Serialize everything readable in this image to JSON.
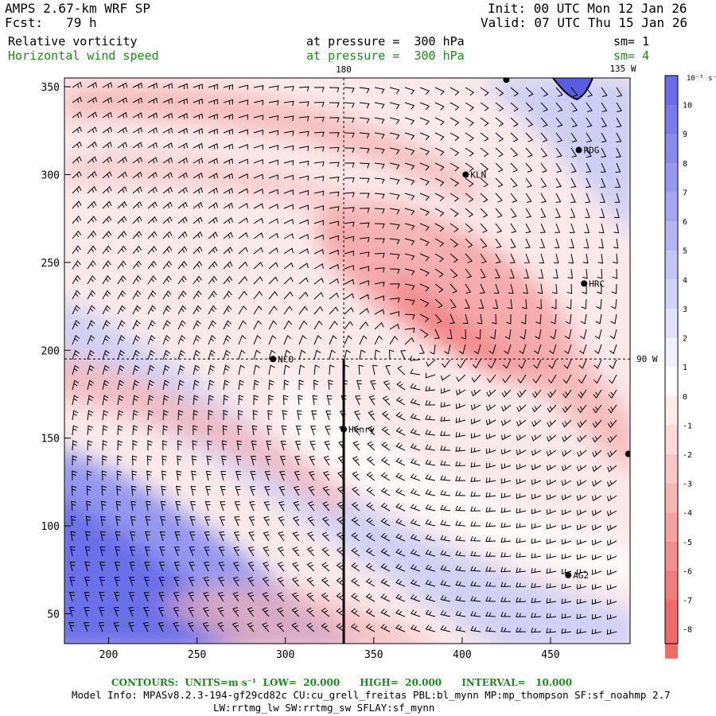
{
  "header": {
    "model": "AMPS 2.67-km WRF SP",
    "forecast": "Fcst:   79 h",
    "init": "Init: 00 UTC Mon 12 Jan 26",
    "valid": "Valid: 07 UTC Thu 15 Jan 26",
    "field1": "Relative vorticity",
    "field1_level": "at pressure =  300 hPa",
    "field1_smooth": "sm= 1",
    "field2": "Horizontal wind speed",
    "field2_level": "at pressure =  300 hPa",
    "field2_smooth": "sm= 4"
  },
  "map_labels": {
    "lon_180": "180",
    "lon_135w": "135 W",
    "lon_90w": "90 W"
  },
  "stations": [
    {
      "name": "KLN",
      "x": 402,
      "y": 300
    },
    {
      "name": "RDG",
      "x": 466,
      "y": 314
    },
    {
      "name": "HRC",
      "x": 469,
      "y": 238
    },
    {
      "name": "NCO",
      "x": 293,
      "y": 195
    },
    {
      "name": "Henry",
      "x": 333,
      "y": 155
    },
    {
      "name": "AG2",
      "x": 460,
      "y": 72
    },
    {
      "name": "",
      "x": 494,
      "y": 141
    },
    {
      "name": "",
      "x": 425,
      "y": 354
    }
  ],
  "colorbar": {
    "unit": "10⁻⁵ s⁻¹",
    "levels": [
      "10",
      "9",
      "8",
      "7",
      "6",
      "5",
      "4",
      "3",
      "2",
      "1",
      "0",
      "-1",
      "-2",
      "-3",
      "-4",
      "-5",
      "-6",
      "-7",
      "-8"
    ]
  },
  "footer": {
    "contours": "CONTOURS:  UNITS=m s⁻¹  LOW=  20.000      HIGH=  20.000      INTERVAL=   10.000",
    "model_info": "Model Info: MPASv8.2.3-194-gf29cd82c CU:cu_grell_freitas PBL:bl_mynn MP:mp_thompson SF:sf_noahmp 2.7",
    "model_info2": "LW:rrtmg_lw SW:rrtmg_sw SFLAY:sf_mynn"
  },
  "chart_data": {
    "type": "heatmap",
    "xlim": [
      175,
      495
    ],
    "ylim": [
      33,
      355
    ],
    "x_ticks": [
      200,
      250,
      300,
      350,
      400,
      450
    ],
    "y_ticks": [
      50,
      100,
      150,
      200,
      250,
      300,
      350
    ],
    "colors": {
      "positive": "#6b6bea",
      "negative": "#f06a6a",
      "zero": "#ffffff"
    },
    "cross_section_line": {
      "x": 333,
      "y_from": 33,
      "y_to": 195
    },
    "grid_lines": {
      "lon_180_x": 333,
      "lat_90w_y": 195
    }
  }
}
